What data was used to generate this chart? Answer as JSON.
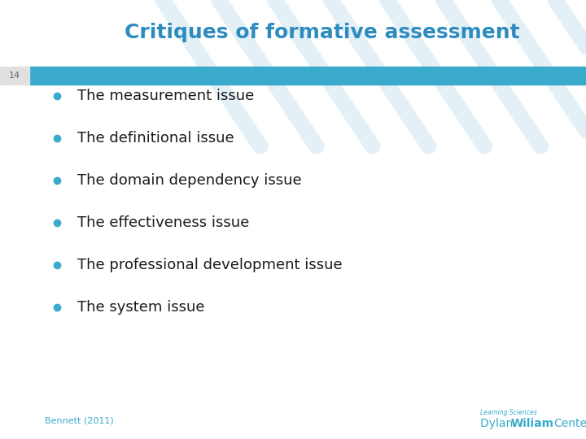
{
  "title": "Critiques of formative assessment",
  "title_color": "#2E8BC0",
  "title_fontsize": 18,
  "slide_number": "14",
  "slide_number_color": "#666666",
  "slide_number_fontsize": 8,
  "header_bar_color": "#3AABCC",
  "bullet_color": "#3AABCC",
  "bullet_text_color": "#1a1a1a",
  "bullet_fontsize": 13,
  "bullets": [
    "The measurement issue",
    "The definitional issue",
    "The domain dependency issue",
    "The effectiveness issue",
    "The professional development issue",
    "The system issue"
  ],
  "footer_left": "Bennett (2011)",
  "footer_right_sub": "Learning Sciences",
  "footer_color": "#3AABCC",
  "bg_color": "#ffffff",
  "decoration_color": "#cce5f0"
}
